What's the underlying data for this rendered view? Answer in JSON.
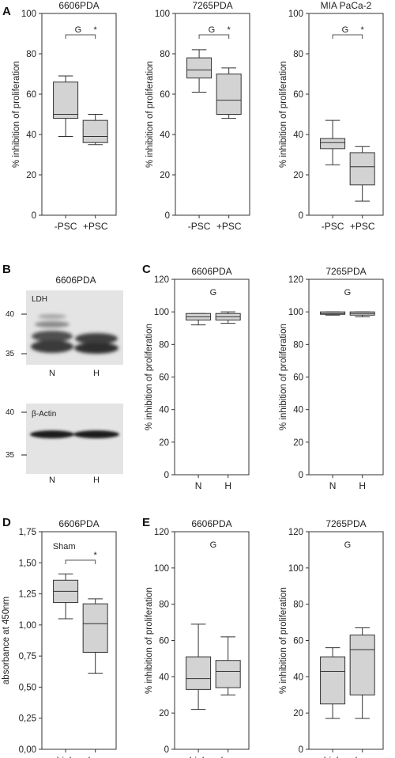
{
  "panel_letters": [
    "A",
    "B",
    "C",
    "D",
    "E"
  ],
  "colors": {
    "box_fill": "#d3d3d3",
    "stroke": "#333333",
    "blot_bg": "#e6e6e6"
  },
  "blot": {
    "title": "6606PDA",
    "lanes": [
      "N",
      "H"
    ],
    "top_protein": "LDH",
    "bottom_protein": "β-Actin",
    "markers_top": [
      "40",
      "35"
    ],
    "markers_bottom": [
      "40",
      "35"
    ]
  },
  "chart_data": [
    {
      "id": "A1",
      "type": "boxplot",
      "title": "6606PDA",
      "ylabel": "% inhibition of proliferation",
      "ylim": [
        0,
        100
      ],
      "yticks": [
        "0",
        "20",
        "40",
        "60",
        "80",
        "100"
      ],
      "categories": [
        "-PSC",
        "+PSC"
      ],
      "boxes": [
        {
          "min": 39,
          "q1": 48,
          "median": 50,
          "q3": 66,
          "max": 69
        },
        {
          "min": 35,
          "q1": 36,
          "median": 39,
          "q3": 47,
          "max": 50
        }
      ],
      "annotations": {
        "group": "G",
        "star": "*"
      }
    },
    {
      "id": "A2",
      "type": "boxplot",
      "title": "7265PDA",
      "ylabel": "% inhibition of proliferation",
      "ylim": [
        0,
        100
      ],
      "yticks": [
        "0",
        "20",
        "40",
        "60",
        "80",
        "100"
      ],
      "categories": [
        "-PSC",
        "+PSC"
      ],
      "boxes": [
        {
          "min": 61,
          "q1": 68,
          "median": 72,
          "q3": 78,
          "max": 82
        },
        {
          "min": 48,
          "q1": 50,
          "median": 57,
          "q3": 70,
          "max": 73
        }
      ],
      "annotations": {
        "group": "G",
        "star": "*"
      }
    },
    {
      "id": "A3",
      "type": "boxplot",
      "title": "MIA PaCa-2",
      "ylabel": "% inhibition of proliferation",
      "ylim": [
        0,
        100
      ],
      "yticks": [
        "0",
        "20",
        "40",
        "60",
        "80",
        "100"
      ],
      "categories": [
        "-PSC",
        "+PSC"
      ],
      "boxes": [
        {
          "min": 25,
          "q1": 33,
          "median": 36,
          "q3": 38,
          "max": 47
        },
        {
          "min": 7,
          "q1": 15,
          "median": 24,
          "q3": 31,
          "max": 34
        }
      ],
      "annotations": {
        "group": "G",
        "star": "*"
      }
    },
    {
      "id": "C1",
      "type": "boxplot",
      "title": "6606PDA",
      "ylabel": "% inhibition of proliferation",
      "ylim": [
        0,
        120
      ],
      "yticks": [
        "0",
        "20",
        "40",
        "60",
        "80",
        "100",
        "120"
      ],
      "categories": [
        "N",
        "H"
      ],
      "boxes": [
        {
          "min": 92,
          "q1": 95,
          "median": 97,
          "q3": 99,
          "max": 99
        },
        {
          "min": 93,
          "q1": 95,
          "median": 97,
          "q3": 99,
          "max": 100
        }
      ],
      "annotations": {
        "group": "G",
        "star": ""
      }
    },
    {
      "id": "C2",
      "type": "boxplot",
      "title": "7265PDA",
      "ylabel": "% inhibition of proliferation",
      "ylim": [
        0,
        120
      ],
      "yticks": [
        "0",
        "20",
        "40",
        "60",
        "80",
        "100",
        "120"
      ],
      "categories": [
        "N",
        "H"
      ],
      "boxes": [
        {
          "min": 98,
          "q1": 98.5,
          "median": 99,
          "q3": 100,
          "max": 100
        },
        {
          "min": 97,
          "q1": 98,
          "median": 99,
          "q3": 100,
          "max": 100
        }
      ],
      "annotations": {
        "group": "G",
        "star": ""
      }
    },
    {
      "id": "D1",
      "type": "boxplot",
      "title": "6606PDA",
      "ylabel": "absorbance at 450nm",
      "ylim": [
        0,
        1.75
      ],
      "yticks": [
        "0,00",
        "0,25",
        "0,50",
        "0,75",
        "1,00",
        "1,25",
        "1,50",
        "1,75"
      ],
      "categories": [
        "high",
        "low"
      ],
      "boxes": [
        {
          "min": 1.05,
          "q1": 1.18,
          "median": 1.27,
          "q3": 1.36,
          "max": 1.41
        },
        {
          "min": 0.61,
          "q1": 0.78,
          "median": 1.01,
          "q3": 1.17,
          "max": 1.21
        }
      ],
      "annotations": {
        "group": "Sham",
        "star": "*"
      }
    },
    {
      "id": "E1",
      "type": "boxplot",
      "title": "6606PDA",
      "ylabel": "% inhibition of proliferation",
      "ylim": [
        0,
        120
      ],
      "yticks": [
        "0",
        "20",
        "40",
        "60",
        "80",
        "100",
        "120"
      ],
      "categories": [
        "high",
        "low"
      ],
      "boxes": [
        {
          "min": 22,
          "q1": 33,
          "median": 39,
          "q3": 51,
          "max": 69
        },
        {
          "min": 30,
          "q1": 34,
          "median": 43,
          "q3": 49,
          "max": 62
        }
      ],
      "annotations": {
        "group": "G",
        "star": ""
      }
    },
    {
      "id": "E2",
      "type": "boxplot",
      "title": "7265PDA",
      "ylabel": "% inhibition of proliferation",
      "ylim": [
        0,
        120
      ],
      "yticks": [
        "0",
        "20",
        "40",
        "60",
        "80",
        "100",
        "120"
      ],
      "categories": [
        "high",
        "low"
      ],
      "boxes": [
        {
          "min": 17,
          "q1": 25,
          "median": 43,
          "q3": 51,
          "max": 56
        },
        {
          "min": 17,
          "q1": 30,
          "median": 55,
          "q3": 63,
          "max": 67
        }
      ],
      "annotations": {
        "group": "G",
        "star": ""
      }
    }
  ]
}
